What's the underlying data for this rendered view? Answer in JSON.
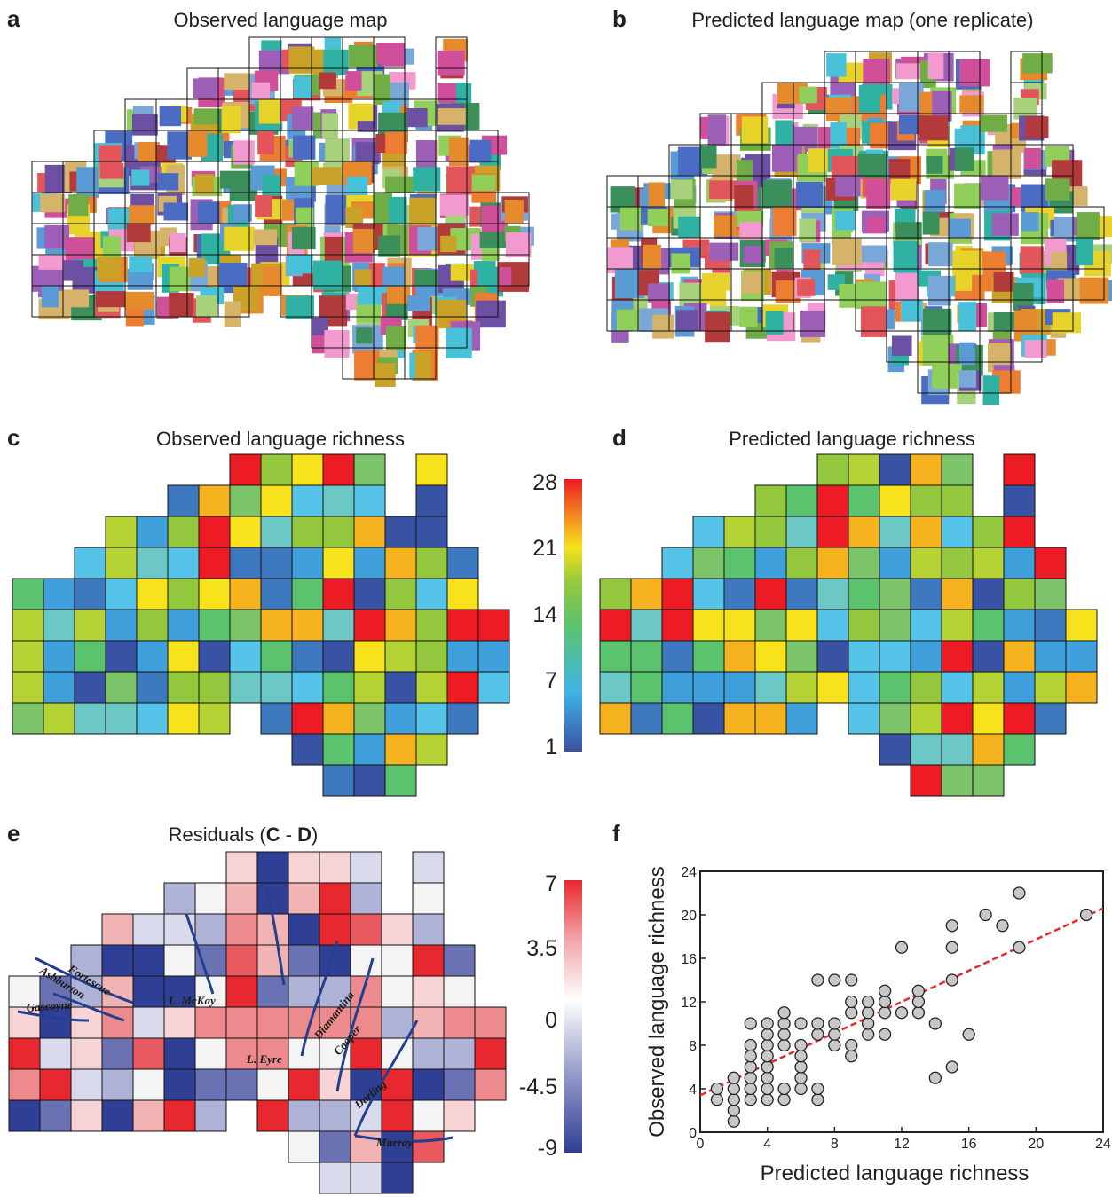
{
  "panels": {
    "a": {
      "letter": "a",
      "title": "Observed language map"
    },
    "b": {
      "letter": "b",
      "title": "Predicted language map (one replicate)"
    },
    "c": {
      "letter": "c",
      "title": "Observed language richness"
    },
    "d": {
      "letter": "d",
      "title": "Predicted language richness"
    },
    "e": {
      "letter": "e",
      "title_pre": "Residuals (",
      "title_c": "C",
      "title_mid": " - ",
      "title_d": "D",
      "title_post": ")"
    },
    "f": {
      "letter": "f"
    }
  },
  "colorbar_richness": {
    "ticks": [
      "28",
      "21",
      "14",
      "7",
      "1"
    ],
    "colors": [
      "#3953a4",
      "#3fb4e6",
      "#5bc36e",
      "#93c83e",
      "#f7e21b",
      "#f47d22",
      "#ed1c24"
    ]
  },
  "colorbar_residuals": {
    "ticks": [
      "7",
      "3.5",
      "0",
      "-4.5",
      "-9"
    ],
    "colors": [
      "#2e3f95",
      "#c6c9e3",
      "#ffffff",
      "#f2b3b5",
      "#e8282f"
    ]
  },
  "rivers": {
    "fortescue": "Fortescue",
    "ashburton": "Ashburton",
    "gascoyne": "Gascoyne",
    "mckay": "L. McKay",
    "eyre": "L. Eyre",
    "diamantina": "Diamantina",
    "cooper": "Cooper",
    "darling": "Darling",
    "murray": "Murray"
  },
  "chart_data": {
    "type": "scatter",
    "xlabel": "Predicted language richness",
    "ylabel": "Observed language richness",
    "xlim": [
      0,
      24
    ],
    "ylim": [
      0,
      24
    ],
    "xticks": [
      "0",
      "4",
      "8",
      "12",
      "16",
      "20",
      "24"
    ],
    "yticks": [
      "0",
      "4",
      "8",
      "12",
      "16",
      "20",
      "24"
    ],
    "points": [
      [
        1,
        3
      ],
      [
        1,
        4
      ],
      [
        2,
        1
      ],
      [
        2,
        2
      ],
      [
        2,
        3
      ],
      [
        2,
        4
      ],
      [
        2,
        5
      ],
      [
        3,
        3
      ],
      [
        3,
        4
      ],
      [
        3,
        5
      ],
      [
        3,
        6
      ],
      [
        3,
        7
      ],
      [
        3,
        8
      ],
      [
        3,
        10
      ],
      [
        4,
        3
      ],
      [
        4,
        4
      ],
      [
        4,
        5
      ],
      [
        4,
        6
      ],
      [
        4,
        7
      ],
      [
        4,
        8
      ],
      [
        4,
        9
      ],
      [
        4,
        10
      ],
      [
        5,
        3
      ],
      [
        5,
        4
      ],
      [
        5,
        8
      ],
      [
        5,
        9
      ],
      [
        5,
        10
      ],
      [
        5,
        11
      ],
      [
        6,
        4
      ],
      [
        6,
        5
      ],
      [
        6,
        6
      ],
      [
        6,
        7
      ],
      [
        6,
        8
      ],
      [
        6,
        10
      ],
      [
        7,
        3
      ],
      [
        7,
        4
      ],
      [
        7,
        9
      ],
      [
        7,
        10
      ],
      [
        7,
        14
      ],
      [
        8,
        8
      ],
      [
        8,
        9
      ],
      [
        8,
        10
      ],
      [
        8,
        14
      ],
      [
        9,
        7
      ],
      [
        9,
        8
      ],
      [
        9,
        11
      ],
      [
        9,
        12
      ],
      [
        9,
        14
      ],
      [
        10,
        9
      ],
      [
        10,
        10
      ],
      [
        10,
        11
      ],
      [
        10,
        12
      ],
      [
        11,
        9
      ],
      [
        11,
        11
      ],
      [
        11,
        12
      ],
      [
        11,
        13
      ],
      [
        12,
        11
      ],
      [
        12,
        17
      ],
      [
        13,
        11
      ],
      [
        13,
        12
      ],
      [
        13,
        13
      ],
      [
        14,
        5
      ],
      [
        14,
        10
      ],
      [
        15,
        6
      ],
      [
        15,
        14
      ],
      [
        15,
        17
      ],
      [
        15,
        19
      ],
      [
        16,
        9
      ],
      [
        17,
        20
      ],
      [
        18,
        19
      ],
      [
        19,
        17
      ],
      [
        19,
        22
      ],
      [
        23,
        20
      ]
    ],
    "trend": {
      "x": [
        0,
        24
      ],
      "y": [
        3.4,
        20.6
      ],
      "color": "#e8282f"
    },
    "marker_color": "#c8c8c8"
  }
}
